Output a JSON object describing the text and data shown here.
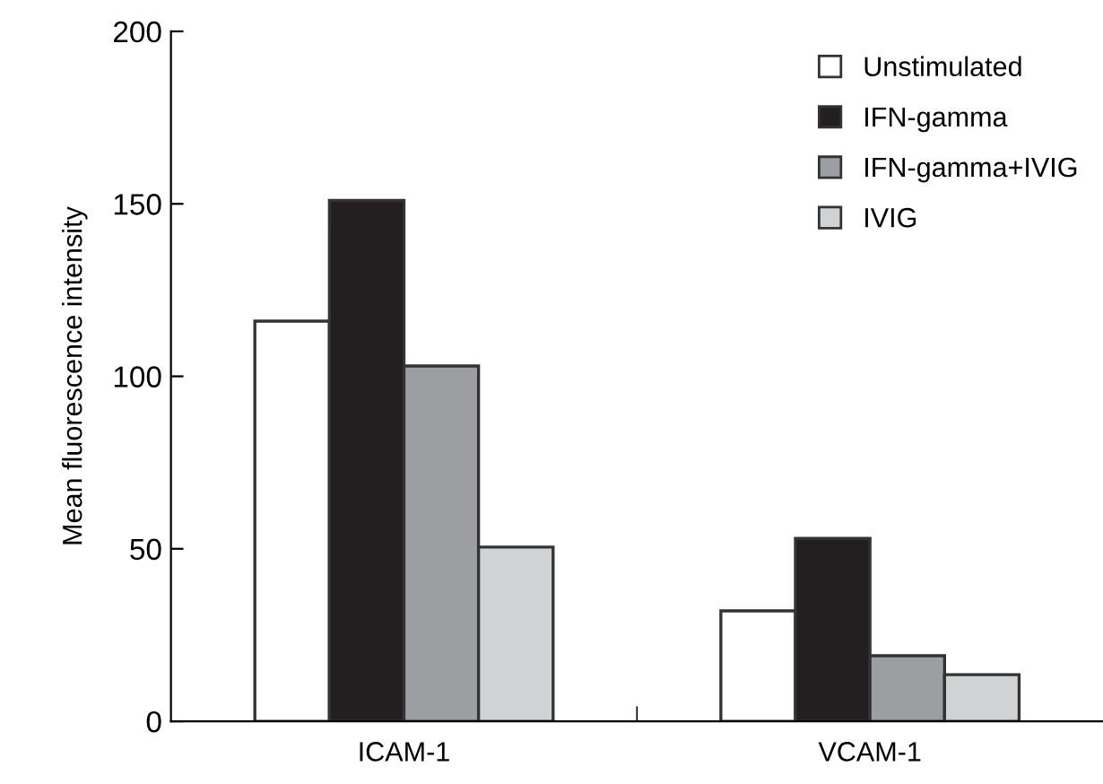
{
  "chart_data": {
    "type": "bar",
    "ylabel": "Mean fluorescence intensity",
    "categories": [
      "ICAM-1",
      "VCAM-1"
    ],
    "series": [
      {
        "name": "Unstimulated",
        "color": "#ffffff",
        "values": [
          116,
          32
        ]
      },
      {
        "name": "IFN-gamma",
        "color": "#231f20",
        "values": [
          151,
          53
        ]
      },
      {
        "name": "IFN-gamma+IVIG",
        "color": "#9d9ea2",
        "values": [
          103,
          19
        ]
      },
      {
        "name": "IVIG",
        "color": "#d1d2d4",
        "values": [
          50.5,
          13.5
        ]
      }
    ],
    "ylim": [
      0,
      200
    ],
    "yticks": [
      0,
      50,
      100,
      150,
      200
    ],
    "grid": false,
    "legend": "top right"
  }
}
